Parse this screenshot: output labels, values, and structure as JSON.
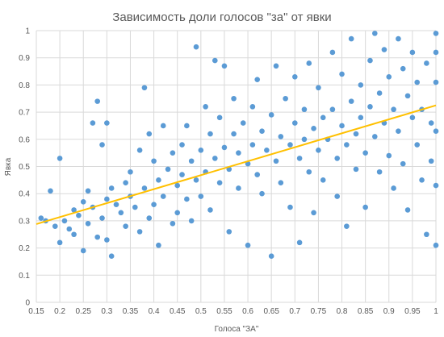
{
  "chart_data": {
    "type": "scatter",
    "title": "Зависимость доли голосов \"за\" от явки",
    "xlabel": "Голоса \"ЗА\"",
    "ylabel": "Явка",
    "xlim": [
      0.15,
      1
    ],
    "ylim": [
      0,
      1
    ],
    "x_ticks": [
      "0.15",
      "0.2",
      "0.25",
      "0.3",
      "0.35",
      "0.4",
      "0.45",
      "0.5",
      "0.55",
      "0.6",
      "0.65",
      "0.7",
      "0.75",
      "0.8",
      "0.85",
      "0.9",
      "0.95",
      "1"
    ],
    "y_ticks": [
      "0",
      "0.1",
      "0.2",
      "0.3",
      "0.4",
      "0.5",
      "0.6",
      "0.7",
      "0.8",
      "0.9",
      "1"
    ],
    "grid": true,
    "legend": "none",
    "colors": {
      "points": "#5b9bd5",
      "trendline": "#ffc000",
      "grid": "#d9d9d9"
    },
    "trendline": {
      "type": "linear",
      "x": [
        0.15,
        1
      ],
      "y": [
        0.288,
        0.725
      ]
    },
    "series": [
      {
        "values": [
          [
            0.16,
            0.31
          ],
          [
            0.17,
            0.3
          ],
          [
            0.18,
            0.41
          ],
          [
            0.19,
            0.28
          ],
          [
            0.2,
            0.22
          ],
          [
            0.2,
            0.53
          ],
          [
            0.21,
            0.3
          ],
          [
            0.22,
            0.27
          ],
          [
            0.23,
            0.34
          ],
          [
            0.23,
            0.25
          ],
          [
            0.24,
            0.32
          ],
          [
            0.25,
            0.19
          ],
          [
            0.25,
            0.37
          ],
          [
            0.26,
            0.41
          ],
          [
            0.26,
            0.29
          ],
          [
            0.27,
            0.66
          ],
          [
            0.27,
            0.35
          ],
          [
            0.28,
            0.74
          ],
          [
            0.28,
            0.24
          ],
          [
            0.29,
            0.58
          ],
          [
            0.29,
            0.31
          ],
          [
            0.3,
            0.66
          ],
          [
            0.3,
            0.38
          ],
          [
            0.3,
            0.23
          ],
          [
            0.31,
            0.42
          ],
          [
            0.31,
            0.17
          ],
          [
            0.32,
            0.36
          ],
          [
            0.33,
            0.33
          ],
          [
            0.34,
            0.44
          ],
          [
            0.34,
            0.28
          ],
          [
            0.35,
            0.48
          ],
          [
            0.35,
            0.39
          ],
          [
            0.36,
            0.35
          ],
          [
            0.37,
            0.56
          ],
          [
            0.37,
            0.26
          ],
          [
            0.38,
            0.79
          ],
          [
            0.38,
            0.42
          ],
          [
            0.39,
            0.62
          ],
          [
            0.39,
            0.31
          ],
          [
            0.4,
            0.52
          ],
          [
            0.4,
            0.36
          ],
          [
            0.41,
            0.45
          ],
          [
            0.41,
            0.21
          ],
          [
            0.42,
            0.65
          ],
          [
            0.42,
            0.39
          ],
          [
            0.43,
            0.49
          ],
          [
            0.44,
            0.29
          ],
          [
            0.44,
            0.55
          ],
          [
            0.45,
            0.43
          ],
          [
            0.45,
            0.33
          ],
          [
            0.46,
            0.58
          ],
          [
            0.46,
            0.47
          ],
          [
            0.47,
            0.38
          ],
          [
            0.47,
            0.65
          ],
          [
            0.48,
            0.52
          ],
          [
            0.48,
            0.3
          ],
          [
            0.49,
            0.94
          ],
          [
            0.49,
            0.45
          ],
          [
            0.5,
            0.56
          ],
          [
            0.5,
            0.39
          ],
          [
            0.51,
            0.72
          ],
          [
            0.51,
            0.48
          ],
          [
            0.52,
            0.34
          ],
          [
            0.52,
            0.62
          ],
          [
            0.53,
            0.89
          ],
          [
            0.53,
            0.53
          ],
          [
            0.54,
            0.44
          ],
          [
            0.54,
            0.68
          ],
          [
            0.55,
            0.87
          ],
          [
            0.55,
            0.57
          ],
          [
            0.56,
            0.26
          ],
          [
            0.56,
            0.49
          ],
          [
            0.57,
            0.75
          ],
          [
            0.57,
            0.62
          ],
          [
            0.58,
            0.42
          ],
          [
            0.58,
            0.55
          ],
          [
            0.59,
            0.66
          ],
          [
            0.6,
            0.21
          ],
          [
            0.6,
            0.51
          ],
          [
            0.61,
            0.72
          ],
          [
            0.61,
            0.58
          ],
          [
            0.62,
            0.47
          ],
          [
            0.62,
            0.82
          ],
          [
            0.63,
            0.63
          ],
          [
            0.63,
            0.4
          ],
          [
            0.64,
            0.56
          ],
          [
            0.65,
            0.17
          ],
          [
            0.65,
            0.69
          ],
          [
            0.66,
            0.52
          ],
          [
            0.66,
            0.87
          ],
          [
            0.67,
            0.61
          ],
          [
            0.67,
            0.44
          ],
          [
            0.68,
            0.75
          ],
          [
            0.69,
            0.58
          ],
          [
            0.69,
            0.35
          ],
          [
            0.7,
            0.66
          ],
          [
            0.7,
            0.83
          ],
          [
            0.71,
            0.53
          ],
          [
            0.71,
            0.22
          ],
          [
            0.72,
            0.71
          ],
          [
            0.72,
            0.6
          ],
          [
            0.73,
            0.48
          ],
          [
            0.73,
            0.88
          ],
          [
            0.74,
            0.64
          ],
          [
            0.74,
            0.33
          ],
          [
            0.75,
            0.56
          ],
          [
            0.75,
            0.79
          ],
          [
            0.76,
            0.68
          ],
          [
            0.76,
            0.45
          ],
          [
            0.77,
            0.6
          ],
          [
            0.78,
            0.92
          ],
          [
            0.78,
            0.71
          ],
          [
            0.79,
            0.53
          ],
          [
            0.79,
            0.39
          ],
          [
            0.8,
            0.65
          ],
          [
            0.8,
            0.84
          ],
          [
            0.81,
            0.58
          ],
          [
            0.81,
            0.28
          ],
          [
            0.82,
            0.74
          ],
          [
            0.82,
            0.97
          ],
          [
            0.83,
            0.62
          ],
          [
            0.83,
            0.49
          ],
          [
            0.84,
            0.8
          ],
          [
            0.84,
            0.68
          ],
          [
            0.85,
            0.55
          ],
          [
            0.85,
            0.35
          ],
          [
            0.86,
            0.89
          ],
          [
            0.86,
            0.72
          ],
          [
            0.87,
            0.99
          ],
          [
            0.87,
            0.61
          ],
          [
            0.88,
            0.48
          ],
          [
            0.88,
            0.77
          ],
          [
            0.89,
            0.66
          ],
          [
            0.89,
            0.93
          ],
          [
            0.9,
            0.54
          ],
          [
            0.9,
            0.83
          ],
          [
            0.91,
            0.71
          ],
          [
            0.91,
            0.42
          ],
          [
            0.92,
            0.97
          ],
          [
            0.92,
            0.63
          ],
          [
            0.93,
            0.86
          ],
          [
            0.93,
            0.51
          ],
          [
            0.94,
            0.76
          ],
          [
            0.94,
            0.34
          ],
          [
            0.95,
            0.68
          ],
          [
            0.95,
            0.92
          ],
          [
            0.96,
            0.58
          ],
          [
            0.96,
            0.81
          ],
          [
            0.97,
            0.71
          ],
          [
            0.97,
            0.45
          ],
          [
            0.98,
            0.88
          ],
          [
            0.98,
            0.25
          ],
          [
            0.99,
            0.66
          ],
          [
            0.99,
            0.52
          ],
          [
            1.0,
            0.99
          ],
          [
            1.0,
            0.92
          ],
          [
            1.0,
            0.81
          ],
          [
            1.0,
            0.63
          ],
          [
            1.0,
            0.43
          ],
          [
            1.0,
            0.21
          ]
        ]
      }
    ]
  }
}
